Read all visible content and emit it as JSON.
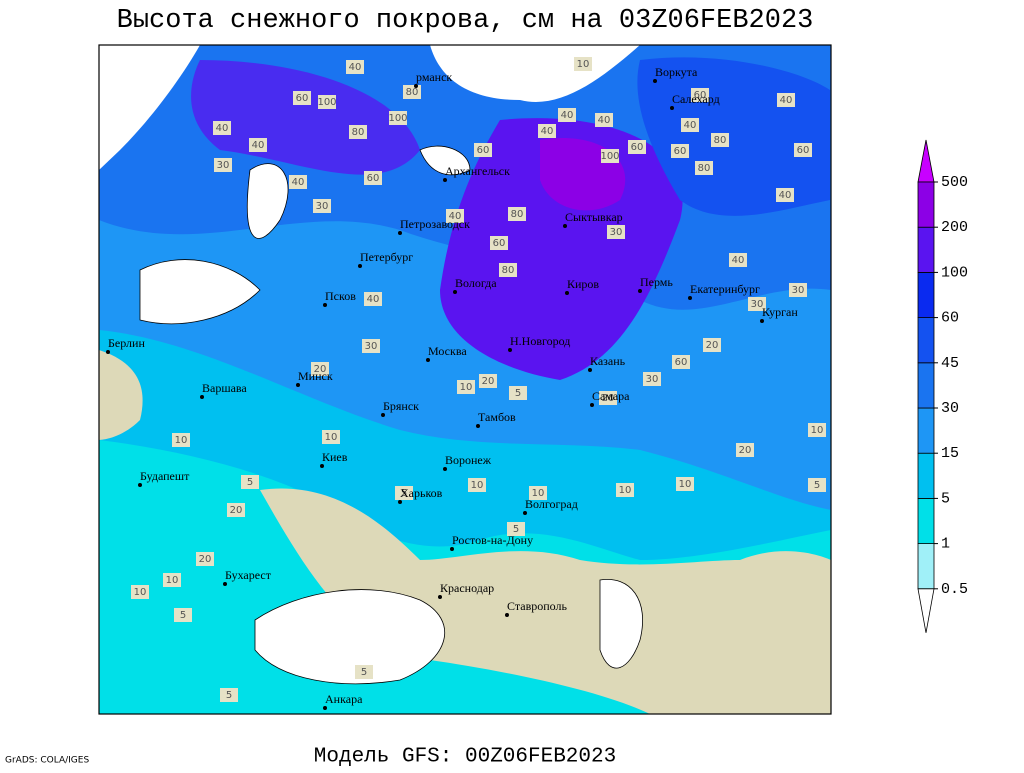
{
  "title": "Высота снежного покрова, см на 03Z06FEB2023",
  "footer_left": "GrADS: COLA/IGES",
  "footer_model": "Модель GFS: 00Z06FEB2023",
  "legend": {
    "levels": [
      0.5,
      1,
      5,
      15,
      30,
      45,
      60,
      100,
      200,
      500
    ],
    "colors": [
      "#ffffff",
      "#a0f0f8",
      "#00e0e8",
      "#00c0f0",
      "#1e96f5",
      "#1a74f0",
      "#1452f0",
      "#0a2af0",
      "#5a14f0",
      "#8c00e6",
      "#c800ff"
    ]
  },
  "cities": [
    "рманск",
    "Воркута",
    "Салехард",
    "Архангельск",
    "Сыктывкар",
    "Петрозаводск",
    "Петербург",
    "Вологда",
    "Киров",
    "Пермь",
    "Екатеринбург",
    "Курган",
    "Псков",
    "Берлин",
    "Н.Новгород",
    "Москва",
    "Казань",
    "Варшава",
    "Минск",
    "Брянск",
    "Тамбов",
    "Самара",
    "Киев",
    "Воронеж",
    "Будапешт",
    "Харьков",
    "Волгоград",
    "Ростов-на-Дону",
    "Бухарест",
    "Краснодар",
    "Ставрополь",
    "Анкара"
  ],
  "contour_labels": [
    40,
    60,
    100,
    80,
    100,
    40,
    40,
    60,
    30,
    40,
    30,
    80,
    60,
    80,
    40,
    100,
    60,
    80,
    40,
    40,
    10,
    40,
    40,
    60,
    60,
    30,
    20,
    60,
    40,
    30,
    30,
    40,
    30,
    20,
    10,
    10,
    20,
    10,
    5,
    10,
    10,
    5,
    10,
    5,
    20,
    10,
    10,
    20,
    5,
    10,
    5,
    5,
    20,
    10,
    40,
    30,
    20,
    60,
    80,
    80,
    60,
    40,
    5,
    5
  ]
}
